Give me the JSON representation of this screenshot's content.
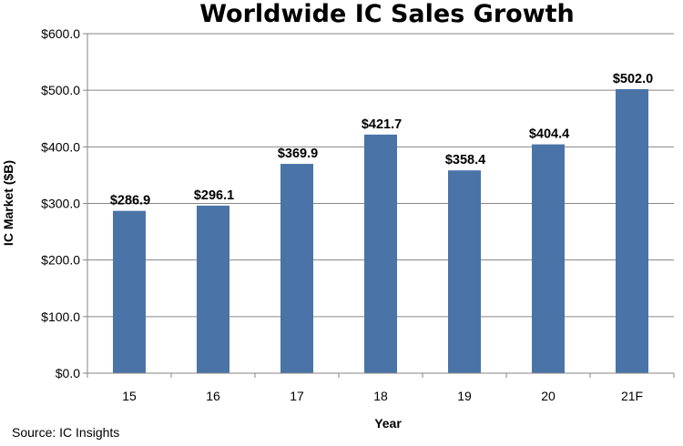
{
  "chart_data": {
    "type": "bar",
    "title": "Worldwide IC Sales Growth",
    "xlabel": "Year",
    "ylabel": "IC Market ($B)",
    "categories": [
      "15",
      "16",
      "17",
      "18",
      "19",
      "20",
      "21F"
    ],
    "values": [
      286.9,
      296.1,
      369.9,
      421.7,
      358.4,
      404.4,
      502.0
    ],
    "data_labels": [
      "$286.9",
      "$296.1",
      "$369.9",
      "$421.7",
      "$358.4",
      "$404.4",
      "$502.0"
    ],
    "yticks": [
      0,
      100,
      200,
      300,
      400,
      500,
      600
    ],
    "ytick_labels": [
      "$0.0",
      "$100.0",
      "$200.0",
      "$300.0",
      "$400.0",
      "$500.0",
      "$600.0"
    ],
    "ylim": [
      0,
      600
    ],
    "grid": true,
    "bar_color": "#4a74a8",
    "grid_color": "#868686"
  },
  "source": "Source:  IC Insights"
}
